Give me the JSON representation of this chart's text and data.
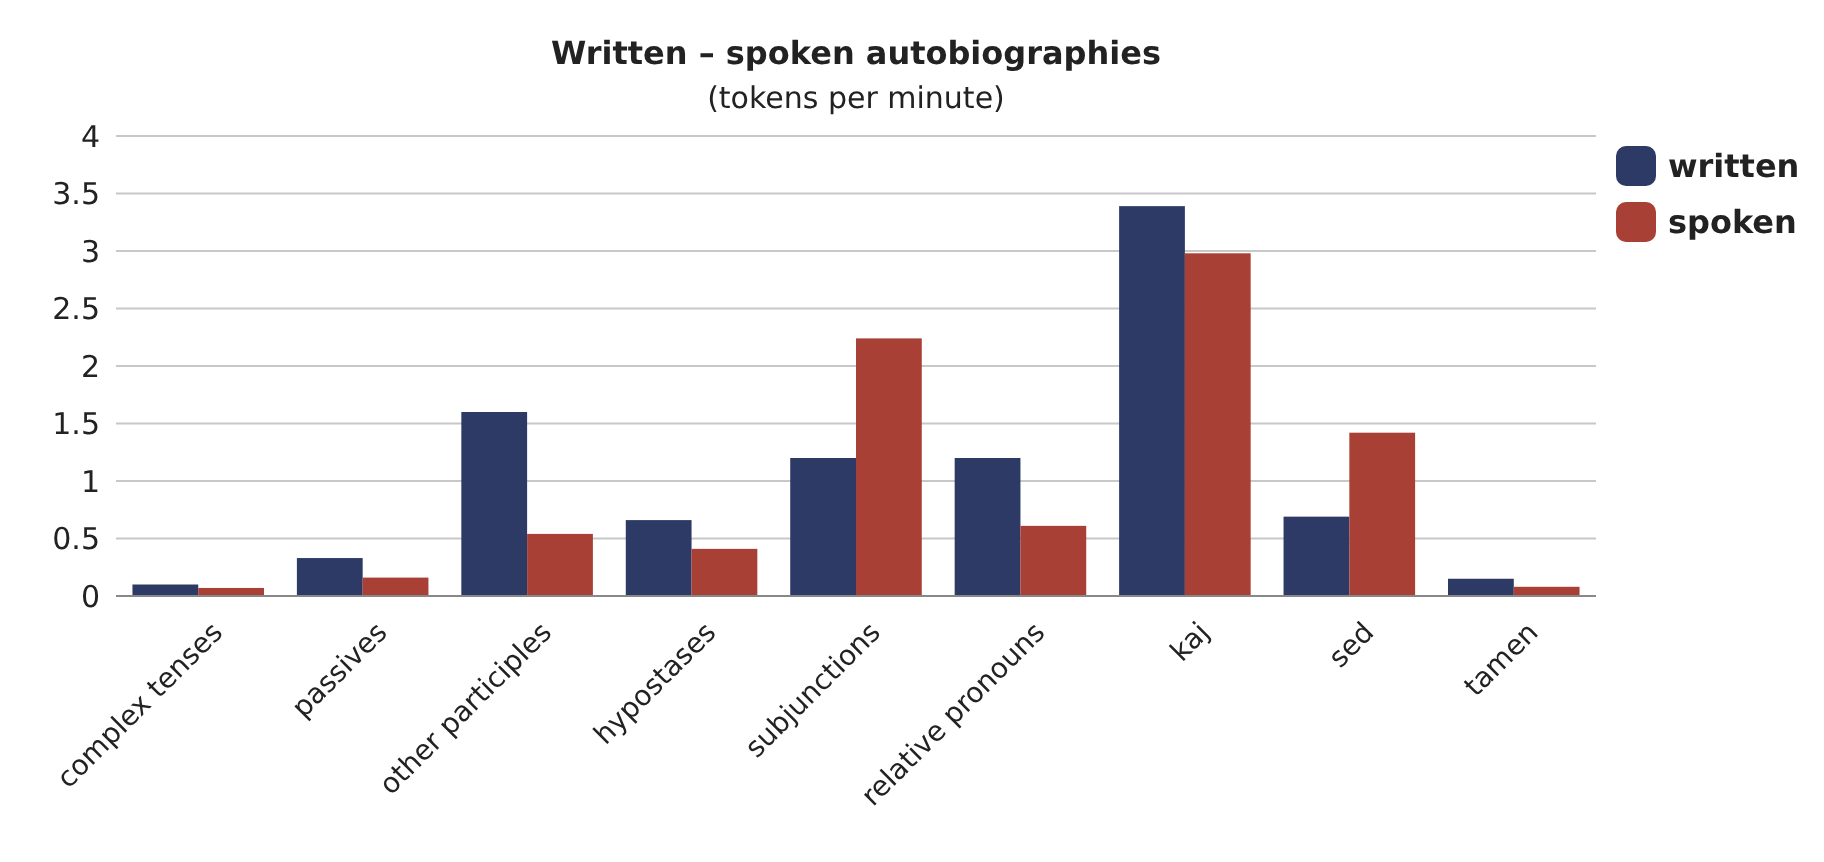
{
  "chart_data": {
    "type": "bar",
    "title": "Written – spoken autobiographies",
    "subtitle": "(tokens per minute)",
    "categories": [
      "complex tenses",
      "passives",
      "other participles",
      "hypostases",
      "subjunctions",
      "relative pronouns",
      "kaj",
      "sed",
      "tamen"
    ],
    "series": [
      {
        "name": "written",
        "color": "#2e3a66",
        "values": [
          0.1,
          0.33,
          1.6,
          0.66,
          1.2,
          1.2,
          3.39,
          0.69,
          0.15
        ]
      },
      {
        "name": "spoken",
        "color": "#a84036",
        "values": [
          0.07,
          0.16,
          0.54,
          0.41,
          2.24,
          0.61,
          2.98,
          1.42,
          0.08
        ]
      }
    ],
    "ylim": [
      0,
      4
    ],
    "yticks": [
      0,
      0.5,
      1,
      1.5,
      2,
      2.5,
      3,
      3.5,
      4
    ],
    "grid": "y",
    "legend": "right"
  }
}
